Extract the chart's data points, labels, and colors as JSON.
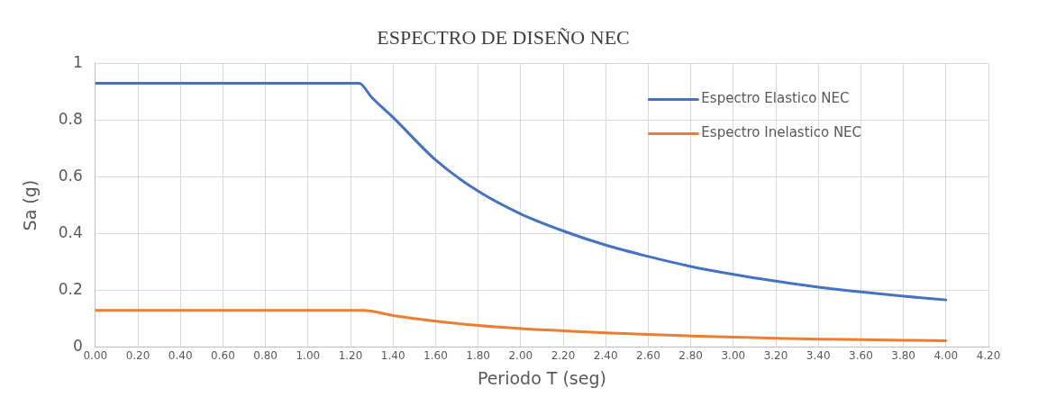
{
  "chart_data": {
    "type": "line",
    "title": "ESPECTRO DE DISEÑO NEC",
    "xlabel": "Periodo T (seg)",
    "ylabel": "Sa (g)",
    "xlim": [
      0,
      4.2
    ],
    "xticks": [
      {
        "value": 0,
        "label": "0.00"
      },
      {
        "value": 0.2,
        "label": "0.20"
      },
      {
        "value": 0.4,
        "label": "0.40"
      },
      {
        "value": 0.6,
        "label": "0.60"
      },
      {
        "value": 0.8,
        "label": "0.80"
      },
      {
        "value": 1,
        "label": "1.00"
      },
      {
        "value": 1.2,
        "label": "1.20"
      },
      {
        "value": 1.4,
        "label": "1.40"
      },
      {
        "value": 1.6,
        "label": "1.60"
      },
      {
        "value": 1.8,
        "label": "1.80"
      },
      {
        "value": 2,
        "label": "2.00"
      },
      {
        "value": 2.2,
        "label": "2.20"
      },
      {
        "value": 2.4,
        "label": "2.40"
      },
      {
        "value": 2.6,
        "label": "2.60"
      },
      {
        "value": 2.8,
        "label": "2.80"
      },
      {
        "value": 3,
        "label": "3.00"
      },
      {
        "value": 3.2,
        "label": "3.20"
      },
      {
        "value": 3.4,
        "label": "3.40"
      },
      {
        "value": 3.6,
        "label": "3.60"
      },
      {
        "value": 3.8,
        "label": "3.80"
      },
      {
        "value": 4,
        "label": "4.00"
      },
      {
        "value": 4.2,
        "label": "4.20"
      }
    ],
    "ylim": [
      0,
      1
    ],
    "yticks": [
      0,
      0.2,
      0.4,
      0.6,
      0.8,
      1
    ],
    "grid": true,
    "legend": "top right",
    "marker": "none",
    "line_style": "solid",
    "series": [
      {
        "name": "Espectro Elastico NEC",
        "color": "#4472c4",
        "x": [
          0,
          0.4,
          0.8,
          1.2,
          1.24,
          1.3,
          1.4,
          1.6,
          1.8,
          2,
          2.2,
          2.4,
          2.6,
          2.8,
          3,
          3.2,
          3.4,
          3.6,
          3.8,
          4
        ],
        "values": [
          0.93,
          0.93,
          0.93,
          0.93,
          0.93,
          0.88,
          0.81,
          0.66,
          0.55,
          0.47,
          0.41,
          0.36,
          0.32,
          0.285,
          0.257,
          0.233,
          0.212,
          0.195,
          0.18,
          0.167
        ]
      },
      {
        "name": "Espectro Inelastico NEC",
        "color": "#ed7d31",
        "x": [
          0,
          0.4,
          0.8,
          1.2,
          1.26,
          1.4,
          1.6,
          1.8,
          2,
          2.2,
          2.4,
          2.6,
          2.8,
          3,
          3.2,
          3.4,
          3.6,
          3.8,
          4
        ],
        "values": [
          0.13,
          0.13,
          0.13,
          0.13,
          0.13,
          0.112,
          0.092,
          0.077,
          0.066,
          0.058,
          0.051,
          0.045,
          0.04,
          0.036,
          0.032,
          0.029,
          0.027,
          0.025,
          0.023
        ]
      }
    ]
  }
}
